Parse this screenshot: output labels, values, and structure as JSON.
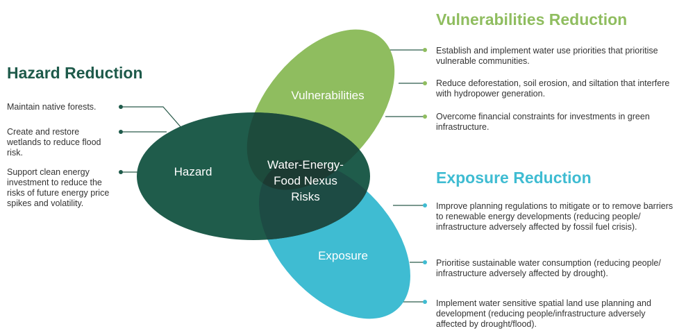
{
  "hazard": {
    "title": "Hazard Reduction",
    "label": "Hazard",
    "items": [
      "Maintain native forests.",
      "Create and restore wetlands to reduce flood risk.",
      "Support clean energy investment to reduce the risks of future energy price spikes and volatility."
    ]
  },
  "vulnerabilities": {
    "title": "Vulnerabilities Reduction",
    "label": "Vulnerabilities",
    "items": [
      "Establish and implement water use priorities that prioritise vulnerable communities.",
      "Reduce deforestation, soil erosion, and siltation that interfere with hydropower generation.",
      "Overcome financial constraints for investments in green infrastructure."
    ]
  },
  "exposure": {
    "title": "Exposure Reduction",
    "label": "Exposure",
    "items": [
      "Improve planning regulations to mitigate or to remove barriers to renewable energy developments (reducing people/ infrastructure adversely affected by fossil fuel crisis).",
      "Prioritise sustainable water consumption (reducing people/ infrastructure adversely affected by drought).",
      "Implement water sensitive spatial land use planning and development (reducing people/infrastructure adversely affected by drought/flood)."
    ]
  },
  "center": {
    "lines": [
      "Water-Energy-",
      "Food Nexus",
      "Risks"
    ]
  }
}
